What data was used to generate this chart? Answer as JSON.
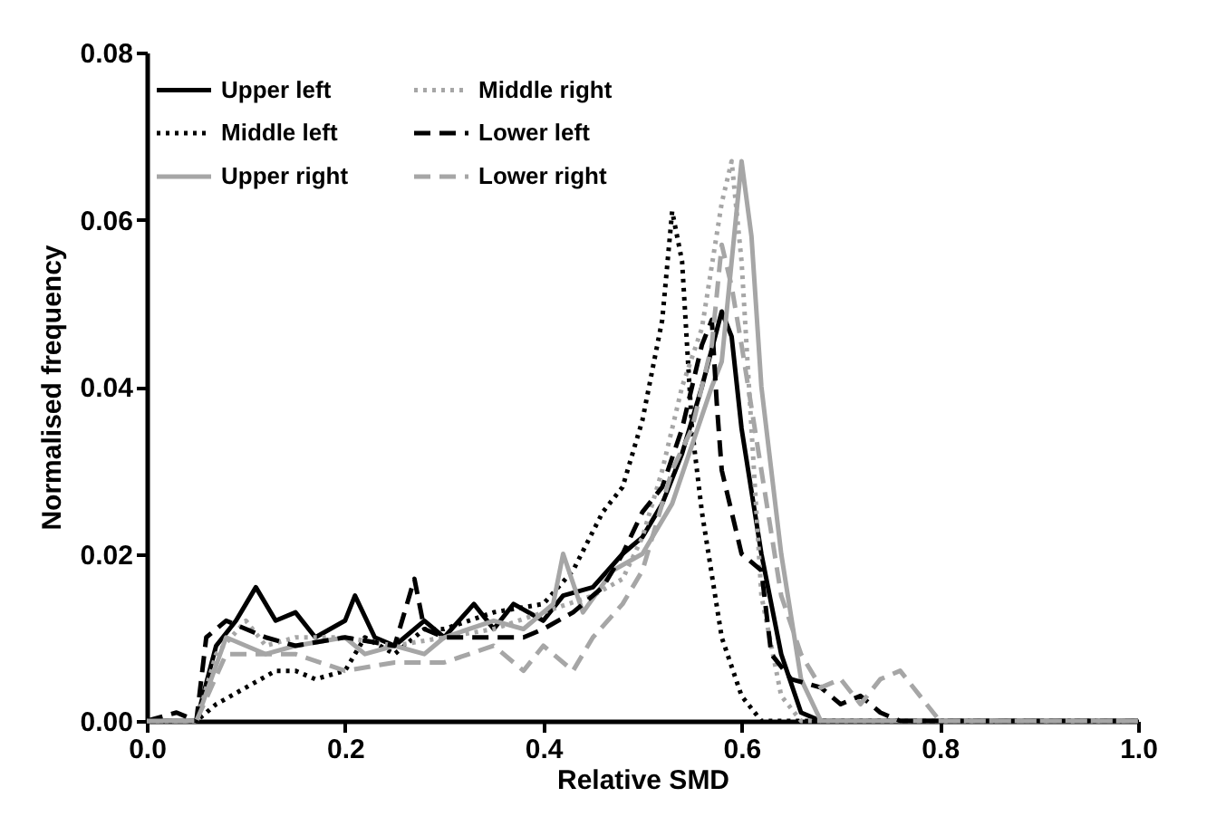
{
  "chart_data": {
    "type": "line",
    "xlabel": "Relative SMD",
    "ylabel": "Normalised frequency",
    "xlim": [
      0,
      1
    ],
    "ylim": [
      0,
      0.08
    ],
    "xticks": [
      {
        "value": 0,
        "label": "0.0"
      },
      {
        "value": 0.2,
        "label": "0.2"
      },
      {
        "value": 0.4,
        "label": "0.4"
      },
      {
        "value": 0.6,
        "label": "0.6"
      },
      {
        "value": 0.8,
        "label": "0.8"
      },
      {
        "value": 1,
        "label": "1.0"
      }
    ],
    "yticks": [
      {
        "value": 0,
        "label": "0.00"
      },
      {
        "value": 0.02,
        "label": "0.02"
      },
      {
        "value": 0.04,
        "label": "0.04"
      },
      {
        "value": 0.06,
        "label": "0.06"
      },
      {
        "value": 0.08,
        "label": "0.08"
      }
    ],
    "grid": false,
    "legend": "top left",
    "marker": "none",
    "series": [
      {
        "name": "Upper left",
        "color": "#000000",
        "line_style": "solid",
        "x": [
          0,
          0.05,
          0.07,
          0.09,
          0.1,
          0.11,
          0.13,
          0.15,
          0.17,
          0.2,
          0.21,
          0.23,
          0.25,
          0.28,
          0.3,
          0.33,
          0.35,
          0.37,
          0.4,
          0.42,
          0.45,
          0.48,
          0.5,
          0.52,
          0.54,
          0.56,
          0.58,
          0.59,
          0.6,
          0.62,
          0.64,
          0.66,
          0.68,
          1
        ],
        "values": [
          0,
          0,
          0.009,
          0.012,
          0.014,
          0.016,
          0.012,
          0.013,
          0.01,
          0.012,
          0.015,
          0.01,
          0.009,
          0.012,
          0.01,
          0.014,
          0.011,
          0.014,
          0.012,
          0.015,
          0.016,
          0.02,
          0.022,
          0.026,
          0.032,
          0.04,
          0.049,
          0.046,
          0.035,
          0.02,
          0.008,
          0.001,
          0,
          0
        ]
      },
      {
        "name": "Middle left",
        "color": "#000000",
        "line_style": "dotted",
        "x": [
          0,
          0.05,
          0.07,
          0.1,
          0.13,
          0.15,
          0.17,
          0.2,
          0.22,
          0.25,
          0.28,
          0.3,
          0.35,
          0.4,
          0.43,
          0.46,
          0.48,
          0.5,
          0.52,
          0.53,
          0.54,
          0.55,
          0.56,
          0.58,
          0.6,
          0.62,
          1
        ],
        "values": [
          0,
          0,
          0.002,
          0.004,
          0.006,
          0.006,
          0.005,
          0.006,
          0.01,
          0.008,
          0.011,
          0.011,
          0.013,
          0.014,
          0.018,
          0.025,
          0.028,
          0.036,
          0.048,
          0.061,
          0.055,
          0.035,
          0.025,
          0.01,
          0.003,
          0,
          0
        ]
      },
      {
        "name": "Upper right",
        "color": "#a6a6a6",
        "line_style": "solid",
        "x": [
          0,
          0.05,
          0.08,
          0.1,
          0.12,
          0.15,
          0.2,
          0.22,
          0.25,
          0.28,
          0.3,
          0.35,
          0.38,
          0.41,
          0.42,
          0.44,
          0.47,
          0.5,
          0.53,
          0.55,
          0.57,
          0.58,
          0.59,
          0.6,
          0.61,
          0.62,
          0.64,
          0.66,
          0.68,
          1
        ],
        "values": [
          0,
          0,
          0.01,
          0.009,
          0.008,
          0.009,
          0.01,
          0.008,
          0.009,
          0.008,
          0.01,
          0.012,
          0.011,
          0.014,
          0.02,
          0.013,
          0.018,
          0.02,
          0.026,
          0.033,
          0.04,
          0.043,
          0.055,
          0.067,
          0.058,
          0.04,
          0.02,
          0.005,
          0,
          0
        ]
      },
      {
        "name": "Middle right",
        "color": "#a6a6a6",
        "line_style": "dotted",
        "x": [
          0,
          0.05,
          0.07,
          0.1,
          0.12,
          0.15,
          0.2,
          0.25,
          0.3,
          0.35,
          0.4,
          0.45,
          0.48,
          0.5,
          0.52,
          0.54,
          0.56,
          0.58,
          0.59,
          0.6,
          0.61,
          0.62,
          0.64,
          0.66,
          1
        ],
        "values": [
          0,
          0,
          0.008,
          0.012,
          0.009,
          0.01,
          0.01,
          0.009,
          0.01,
          0.011,
          0.013,
          0.015,
          0.017,
          0.022,
          0.03,
          0.04,
          0.047,
          0.062,
          0.067,
          0.055,
          0.035,
          0.015,
          0.003,
          0,
          0
        ]
      },
      {
        "name": "Lower left",
        "color": "#000000",
        "line_style": "dashed",
        "x": [
          0,
          0.03,
          0.05,
          0.06,
          0.08,
          0.1,
          0.12,
          0.15,
          0.2,
          0.25,
          0.27,
          0.28,
          0.3,
          0.35,
          0.38,
          0.4,
          0.43,
          0.46,
          0.48,
          0.5,
          0.52,
          0.54,
          0.56,
          0.57,
          0.575,
          0.58,
          0.6,
          0.62,
          0.63,
          0.65,
          0.68,
          0.7,
          0.72,
          0.74,
          0.76,
          1
        ],
        "values": [
          0,
          0.001,
          0,
          0.01,
          0.012,
          0.011,
          0.01,
          0.009,
          0.01,
          0.009,
          0.017,
          0.011,
          0.01,
          0.01,
          0.01,
          0.011,
          0.013,
          0.016,
          0.02,
          0.025,
          0.028,
          0.035,
          0.045,
          0.048,
          0.038,
          0.03,
          0.02,
          0.018,
          0.008,
          0.005,
          0.004,
          0.002,
          0.003,
          0.001,
          0,
          0
        ]
      },
      {
        "name": "Lower right",
        "color": "#a6a6a6",
        "line_style": "dashed",
        "x": [
          0,
          0.05,
          0.08,
          0.1,
          0.15,
          0.2,
          0.25,
          0.3,
          0.35,
          0.38,
          0.4,
          0.43,
          0.45,
          0.48,
          0.5,
          0.53,
          0.55,
          0.57,
          0.58,
          0.59,
          0.6,
          0.62,
          0.64,
          0.66,
          0.68,
          0.7,
          0.72,
          0.74,
          0.76,
          0.78,
          0.8,
          1
        ],
        "values": [
          0,
          0,
          0.008,
          0.008,
          0.008,
          0.006,
          0.007,
          0.007,
          0.009,
          0.006,
          0.009,
          0.006,
          0.01,
          0.014,
          0.018,
          0.03,
          0.035,
          0.045,
          0.057,
          0.052,
          0.045,
          0.03,
          0.015,
          0.008,
          0.004,
          0.005,
          0.002,
          0.005,
          0.006,
          0.003,
          0,
          0
        ]
      }
    ]
  }
}
